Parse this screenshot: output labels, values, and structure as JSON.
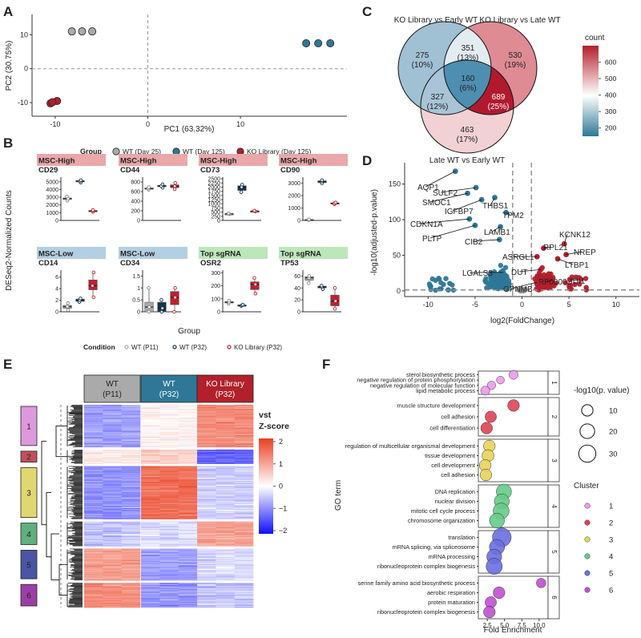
{
  "panel_letters": [
    "A",
    "B",
    "C",
    "D",
    "E",
    "F"
  ],
  "chart_data": [
    {
      "id": "pca",
      "type": "scatter",
      "xlabel": "PC1 (63.32%)",
      "ylabel": "PC2 (30.75%)",
      "xticks": [
        -10,
        0,
        10
      ],
      "yticks": [
        -10,
        0,
        10
      ],
      "xlim": [
        -12.5,
        21.5
      ],
      "ylim": [
        -14,
        16
      ],
      "legend_title": "Group",
      "groups": [
        {
          "name": "WT (Day 25)",
          "color": "#aaaaaa",
          "points": [
            [
              -8.2,
              11
            ],
            [
              -7.1,
              11
            ],
            [
              -6.0,
              11
            ]
          ]
        },
        {
          "name": "WT (Day 125)",
          "color": "#2e7797",
          "points": [
            [
              17.1,
              7.5
            ],
            [
              18.4,
              7.5
            ],
            [
              19.7,
              7.5
            ]
          ]
        },
        {
          "name": "KO Library (Day 125)",
          "color": "#b2202b",
          "points": [
            [
              -10.5,
              -10.2
            ],
            [
              -9.8,
              -9.5
            ],
            [
              -10.3,
              -9.9
            ]
          ]
        }
      ]
    },
    {
      "id": "deseq_boxplots",
      "type": "box",
      "ylabel": "DESeq2-Normalized Counts",
      "xlabel": "Group",
      "legend_title": "Condition",
      "conditions": [
        {
          "name": "WT (P11)",
          "color": "#aaaaaa"
        },
        {
          "name": "WT (P32)",
          "color": "#17374f"
        },
        {
          "name": "KO Library (P32)",
          "color": "#c0202e"
        }
      ],
      "panels": [
        {
          "category": "MSC-High",
          "gene": "CD29",
          "yticks": [
            0,
            1000,
            2000,
            3000,
            4000,
            5000
          ],
          "ylim": [
            0,
            5600
          ],
          "boxes": [
            [
              2550,
              2700,
              2820,
              2900,
              3100
            ],
            [
              4900,
              5000,
              5070,
              5150,
              5200
            ],
            [
              1100,
              1180,
              1230,
              1280,
              1330
            ]
          ]
        },
        {
          "category": "MSC-High",
          "gene": "CD44",
          "yticks": [
            0,
            200,
            400,
            600,
            800
          ],
          "ylim": [
            0,
            900
          ],
          "boxes": [
            [
              640,
              655,
              665,
              675,
              690
            ],
            [
              680,
              700,
              715,
              730,
              750
            ],
            [
              650,
              680,
              710,
              740,
              780
            ]
          ]
        },
        {
          "category": "MSC-High",
          "gene": "CD73",
          "yticks": [
            0,
            250,
            500,
            750,
            1000,
            1250,
            1500,
            1750,
            2000,
            2250,
            2500
          ],
          "ylim": [
            0,
            2600
          ],
          "boxes": [
            [
              370,
              385,
              395,
              405,
              420
            ],
            [
              1700,
              1800,
              2000,
              2080,
              2150
            ],
            [
              540,
              550,
              560,
              570,
              585
            ]
          ]
        },
        {
          "category": "MSC-High",
          "gene": "CD90",
          "yticks": [
            0,
            1000,
            2000,
            3000
          ],
          "ylim": [
            0,
            3500
          ],
          "boxes": [
            [
              30,
              45,
              55,
              65,
              80
            ],
            [
              3000,
              3050,
              3150,
              3200,
              3250
            ],
            [
              1300,
              1350,
              1390,
              1420,
              1450
            ]
          ]
        },
        {
          "category": "MSC-Low",
          "gene": "CD14",
          "yticks": [
            0,
            2,
            4,
            6
          ],
          "ylim": [
            0,
            7.2
          ],
          "boxes": [
            [
              0.3,
              0.6,
              0.9,
              1.1,
              1.5
            ],
            [
              1.7,
              1.8,
              2.0,
              2.2,
              2.3
            ],
            [
              2.5,
              3.8,
              4.5,
              5.5,
              6.8
            ]
          ]
        },
        {
          "category": "MSC-Low",
          "gene": "CD34",
          "yticks": [
            0.0,
            0.5,
            1.0,
            1.5
          ],
          "ylim": [
            0,
            1.75
          ],
          "boxes": [
            [
              0.0,
              0.0,
              0.2,
              0.4,
              1.0
            ],
            [
              0.0,
              0.0,
              0.15,
              0.4,
              0.5
            ],
            [
              0.0,
              0.3,
              0.6,
              0.85,
              1.0
            ]
          ]
        },
        {
          "category": "Top sgRNA",
          "gene": "OSR2",
          "yticks": [
            0,
            100,
            200,
            300
          ],
          "ylim": [
            0,
            320
          ],
          "boxes": [
            [
              62,
              68,
              72,
              78,
              85
            ],
            [
              45,
              48,
              50,
              52,
              55
            ],
            [
              140,
              170,
              210,
              230,
              260
            ]
          ]
        },
        {
          "category": "Top sgRNA",
          "gene": "TP53",
          "yticks": [
            0,
            20,
            40,
            60
          ],
          "ylim": [
            0,
            70
          ],
          "boxes": [
            [
              48,
              53,
              57,
              59,
              60
            ],
            [
              38,
              40,
              42,
              43,
              44
            ],
            [
              5,
              10,
              18,
              28,
              40
            ]
          ]
        }
      ]
    },
    {
      "id": "venn",
      "type": "venn",
      "set_labels": [
        "KO Library vs Early WT",
        "KO Library vs Late WT",
        "Late WT vs Early WT"
      ],
      "regions": [
        {
          "count": "275",
          "pct": "(10%)",
          "value": 275,
          "color": "#a0c0d3"
        },
        {
          "count": "351",
          "pct": "(13%)",
          "value": 351,
          "color": "#e2ecf1"
        },
        {
          "count": "530",
          "pct": "(19%)",
          "value": 530,
          "color": "#de8b94"
        },
        {
          "count": "160",
          "pct": "(6%)",
          "value": 160,
          "color": "#4e8eb0"
        },
        {
          "count": "327",
          "pct": "(12%)",
          "value": 327,
          "color": "#a8c4d6"
        },
        {
          "count": "689",
          "pct": "(25%)",
          "value": 689,
          "color": "#b11a2e"
        },
        {
          "count": "463",
          "pct": "(17%)",
          "value": 463,
          "color": "#f1d1d4"
        }
      ],
      "colorbar_title": "count",
      "colorbar_ticks": [
        200,
        300,
        400,
        500,
        600
      ],
      "colorbar_range": [
        150,
        700
      ]
    },
    {
      "id": "volcano",
      "type": "scatter",
      "xlabel": "log2(FoldChange)",
      "ylabel": "-log10(adjusted-p.value)",
      "xticks": [
        -10,
        -5,
        0,
        5,
        10
      ],
      "yticks": [
        0,
        50,
        100,
        150
      ],
      "xlim": [
        -12.5,
        12.5
      ],
      "ylim": [
        -8,
        180
      ],
      "fc_threshold": 1,
      "down_color": "#2e7797",
      "up_color": "#b2202b",
      "ns_color": "#8c8c8c",
      "labeled_points": [
        {
          "label": "AQP1",
          "x": -7.1,
          "y": 168
        },
        {
          "label": "SULF2",
          "x": -4.9,
          "y": 145
        },
        {
          "label": "SMOC1",
          "x": -5.8,
          "y": 137
        },
        {
          "label": "IGFBP7",
          "x": -4.3,
          "y": 128
        },
        {
          "label": "THBS1",
          "x": -2.9,
          "y": 131
        },
        {
          "label": "CDKN1A",
          "x": -5.6,
          "y": 101
        },
        {
          "label": "TPM2",
          "x": -1.7,
          "y": 110
        },
        {
          "label": "LAMB1",
          "x": -2.3,
          "y": 90
        },
        {
          "label": "PLTP",
          "x": -5.0,
          "y": 92
        },
        {
          "label": "CIB2",
          "x": -2.4,
          "y": 72
        },
        {
          "label": "ASRGL1",
          "x": 1.6,
          "y": 48
        },
        {
          "label": "KCNK12",
          "x": 4.5,
          "y": 66
        },
        {
          "label": "RPL21",
          "x": 2.3,
          "y": 60
        },
        {
          "label": "NREP",
          "x": 4.7,
          "y": 51
        },
        {
          "label": "LTBP1",
          "x": 3.8,
          "y": 45
        },
        {
          "label": "LGALS3",
          "x": -2.0,
          "y": 26
        },
        {
          "label": "DUT",
          "x": 2.0,
          "y": 30
        },
        {
          "label": "RF00002",
          "x": 3.2,
          "y": 15
        },
        {
          "label": "IDI1",
          "x": 5.1,
          "y": 16
        },
        {
          "label": "GPNMB",
          "x": 1.6,
          "y": 12
        }
      ]
    },
    {
      "id": "heatmap",
      "type": "heatmap",
      "columns": [
        {
          "label_line1": "WT",
          "label_line2": "(P11)",
          "color": "#aaaaaa"
        },
        {
          "label_line1": "WT",
          "label_line2": "(P32)",
          "color": "#2e7797"
        },
        {
          "label_line1": "KO Library",
          "label_line2": "(P32)",
          "color": "#b2202b"
        }
      ],
      "clusters": [
        {
          "id": "1",
          "color": "#dd99dd",
          "rows": 12,
          "pattern": [
            -0.8,
            0.1,
            1.2
          ]
        },
        {
          "id": "2",
          "color": "#c0505a",
          "rows": 4,
          "pattern": [
            0.2,
            0.5,
            -1.3
          ]
        },
        {
          "id": "3",
          "color": "#e0d770",
          "rows": 15,
          "pattern": [
            -0.9,
            1.5,
            -0.4
          ]
        },
        {
          "id": "4",
          "color": "#5faf7f",
          "rows": 7,
          "pattern": [
            -0.5,
            -0.3,
            1.0
          ]
        },
        {
          "id": "5",
          "color": "#4a55a5",
          "rows": 9,
          "pattern": [
            1.0,
            -0.8,
            -0.3
          ]
        },
        {
          "id": "6",
          "color": "#9c3ea8",
          "rows": 7,
          "pattern": [
            1.2,
            -0.9,
            -0.5
          ]
        }
      ],
      "colorbar_title_line1": "vst",
      "colorbar_title_line2": "Z-score",
      "colorbar_ticks": [
        2,
        1,
        0,
        -1,
        -2
      ]
    },
    {
      "id": "go_enrichment",
      "type": "dot",
      "xlabel": "Fold Enrichment",
      "ylabel": "GO term",
      "xticks": [
        2.5,
        5.0,
        7.5,
        10.0
      ],
      "xtick_labels": [
        "2.5",
        "5.0",
        "7.5",
        "10.0"
      ],
      "xlim": [
        1.2,
        11.3
      ],
      "size_legend_title": "-log10(p. value)",
      "size_legend_values": [
        10,
        20,
        30
      ],
      "cluster_legend_title": "Cluster",
      "clusters": [
        {
          "id": "1",
          "color": "#ee99ee",
          "terms": [
            {
              "term": "sterol biosynthetic process",
              "fold": 6.3,
              "logp": 5
            },
            {
              "term": "negative regulation of protein phosphorylation",
              "fold": 4.4,
              "logp": 3
            },
            {
              "term": "negative regulation of molecular function",
              "fold": 3.1,
              "logp": 4
            },
            {
              "term": "lipid metabolic process",
              "fold": 2.2,
              "logp": 5
            }
          ]
        },
        {
          "id": "2",
          "color": "#dd4455",
          "terms": [
            {
              "term": "muscle structure development",
              "fold": 6.3,
              "logp": 11
            },
            {
              "term": "cell adhesion",
              "fold": 3.0,
              "logp": 10
            },
            {
              "term": "cell differentiation",
              "fold": 2.4,
              "logp": 11
            }
          ]
        },
        {
          "id": "3",
          "color": "#e8d35a",
          "terms": [
            {
              "term": "regulation of multicellular organismal development",
              "fold": 2.8,
              "logp": 11
            },
            {
              "term": "tissue development",
              "fold": 2.6,
              "logp": 12
            },
            {
              "term": "cell development",
              "fold": 2.2,
              "logp": 11
            },
            {
              "term": "cell adhesion",
              "fold": 2.3,
              "logp": 11
            }
          ]
        },
        {
          "id": "4",
          "color": "#66cc88",
          "terms": [
            {
              "term": "DNA replication",
              "fold": 4.9,
              "logp": 22
            },
            {
              "term": "nuclear division",
              "fold": 4.6,
              "logp": 21
            },
            {
              "term": "mitotic cell cycle process",
              "fold": 4.5,
              "logp": 25
            },
            {
              "term": "chromosome organization",
              "fold": 3.9,
              "logp": 21
            }
          ]
        },
        {
          "id": "5",
          "color": "#6b6fe0",
          "terms": [
            {
              "term": "translation",
              "fold": 4.6,
              "logp": 38
            },
            {
              "term": "mRNA splicing, via spliceosome",
              "fold": 3.9,
              "logp": 22
            },
            {
              "term": "mRNA processing",
              "fold": 3.5,
              "logp": 21
            },
            {
              "term": "ribonucleoprotein complex biogenesis",
              "fold": 3.5,
              "logp": 26
            }
          ]
        },
        {
          "id": "6",
          "color": "#c050d0",
          "terms": [
            {
              "term": "serine family amino acid biosynthetic process",
              "fold": 10.3,
              "logp": 6
            },
            {
              "term": "aerobic respiration",
              "fold": 4.2,
              "logp": 11
            },
            {
              "term": "protein maturation",
              "fold": 3.0,
              "logp": 10
            },
            {
              "term": "ribonucleoprotein complex biogenesis",
              "fold": 2.8,
              "logp": 11
            }
          ]
        }
      ]
    }
  ]
}
